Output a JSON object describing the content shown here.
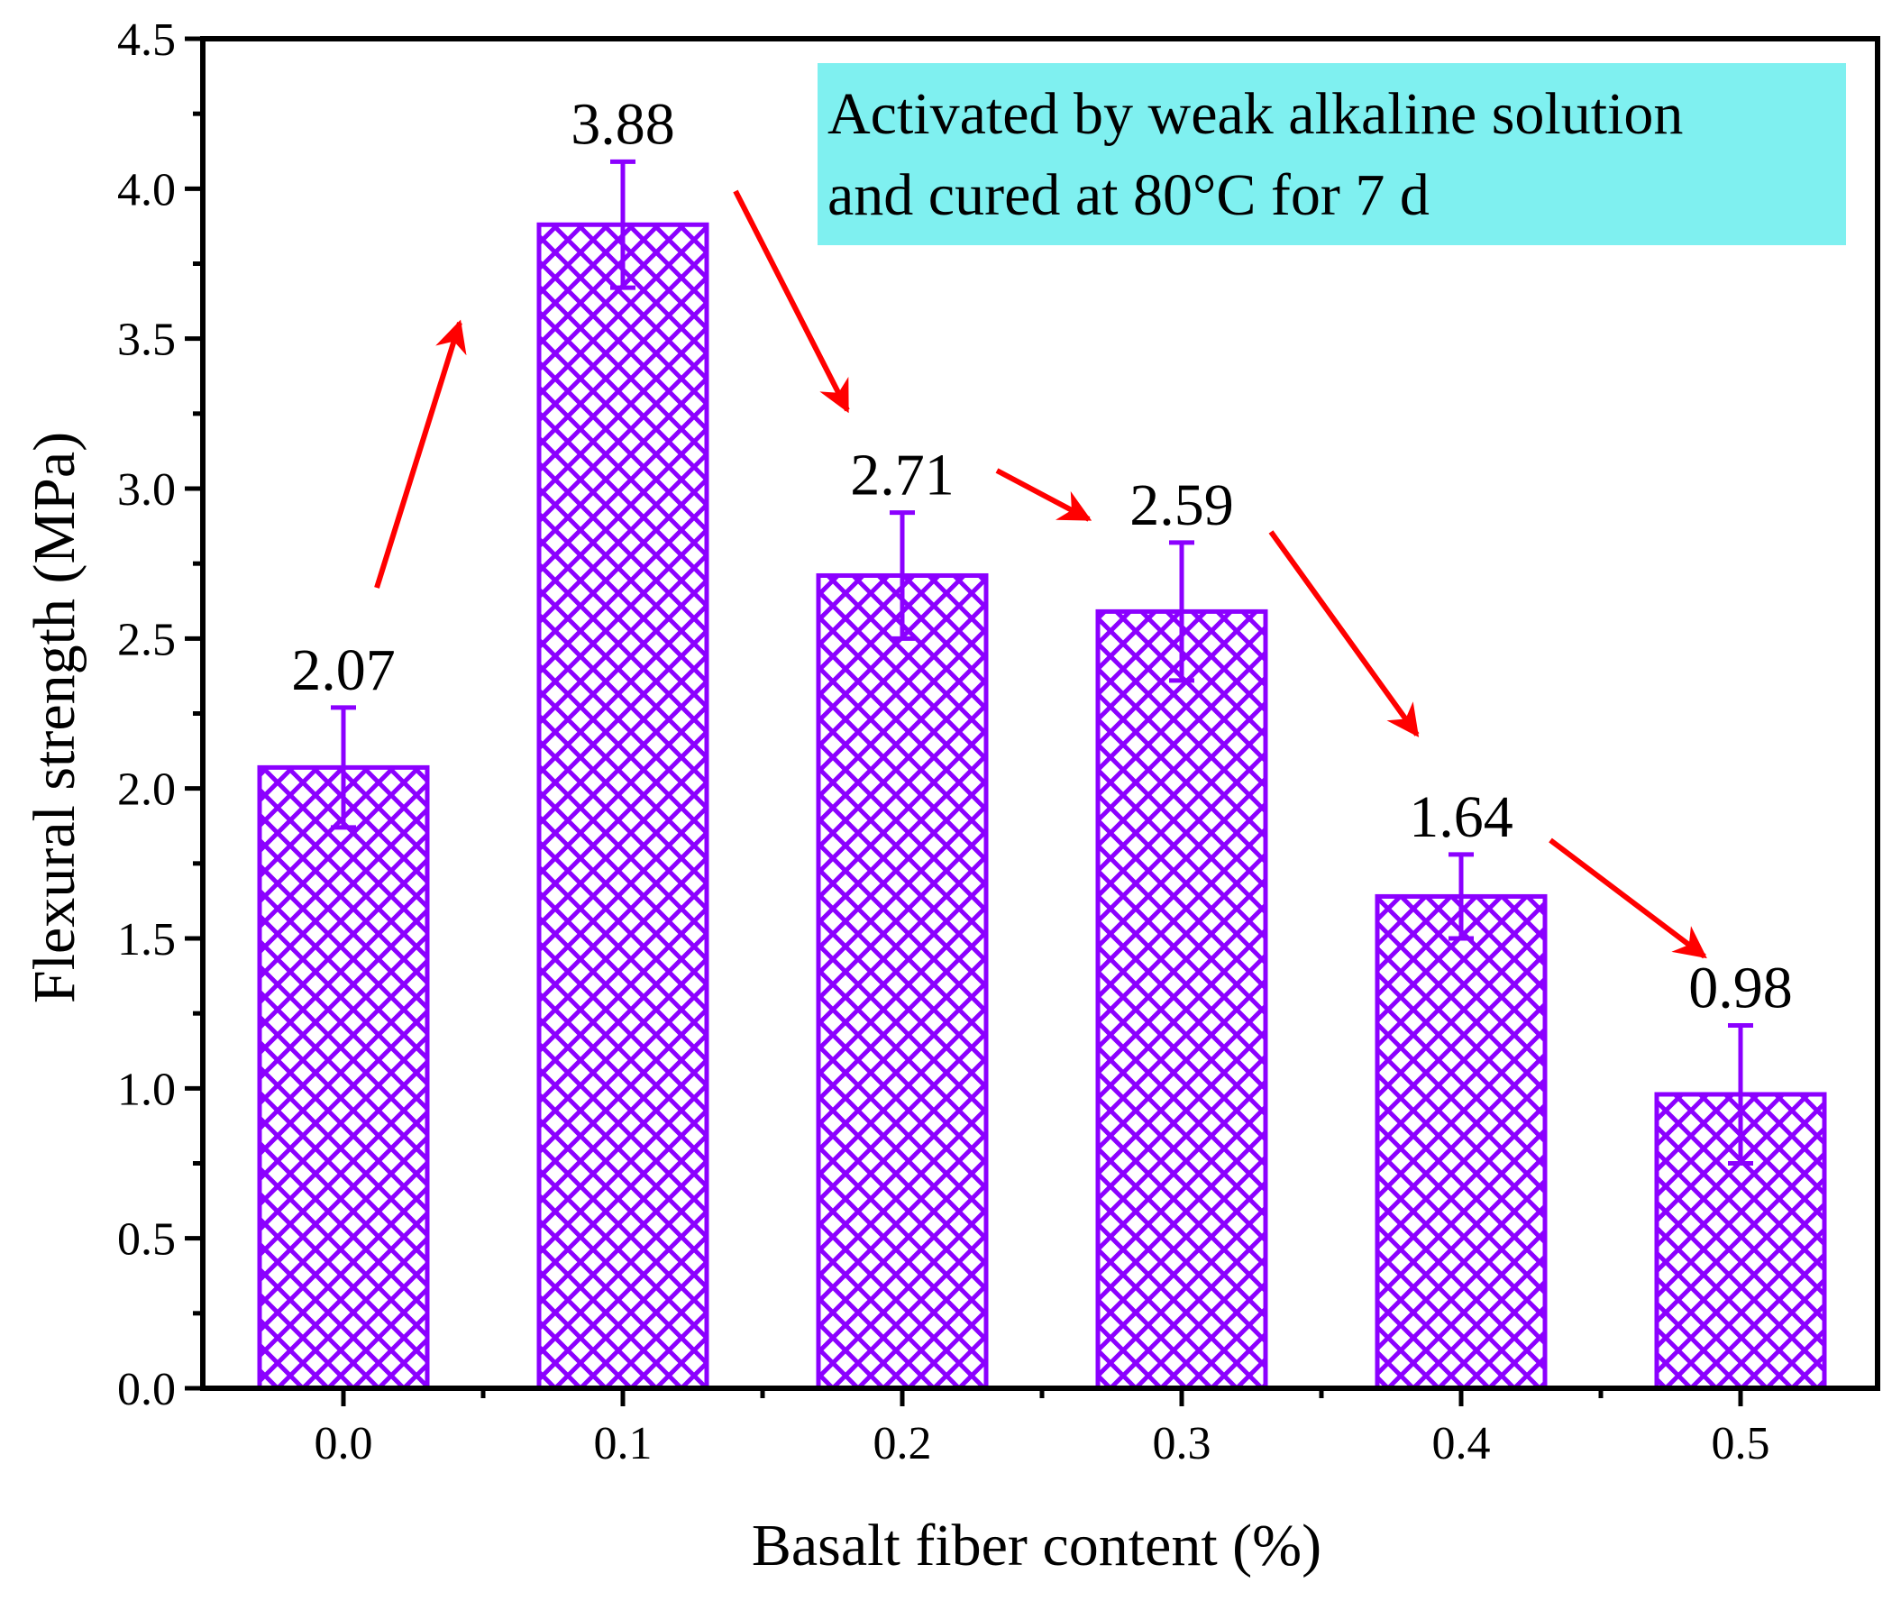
{
  "chart_data": {
    "type": "bar",
    "title": "",
    "xlabel": "Basalt fiber content (%)",
    "ylabel": "Flexural strength (MPa)",
    "categories": [
      "0.0",
      "0.1",
      "0.2",
      "0.3",
      "0.4",
      "0.5"
    ],
    "values": [
      2.07,
      3.88,
      2.71,
      2.59,
      1.64,
      0.98
    ],
    "value_labels": [
      "2.07",
      "3.88",
      "2.71",
      "2.59",
      "1.64",
      "0.98"
    ],
    "error": [
      0.2,
      0.21,
      0.21,
      0.23,
      0.14,
      0.23
    ],
    "ylim": [
      0,
      4.5
    ],
    "yticks": [
      "0.0",
      "0.5",
      "1.0",
      "1.5",
      "2.0",
      "2.5",
      "3.0",
      "3.5",
      "4.0",
      "4.5"
    ],
    "grid": false,
    "bar_pattern": "crosshatch",
    "annotation": {
      "line1": "Activated by weak alkaline solution",
      "line2": "and cured at 80°C for 7 d"
    },
    "trend_arrows": "between consecutive bars"
  },
  "colors": {
    "bar": "#8B00FF",
    "arrow": "#FF0000",
    "annotation_bg": "#7FF0F0",
    "axis": "#000000"
  }
}
